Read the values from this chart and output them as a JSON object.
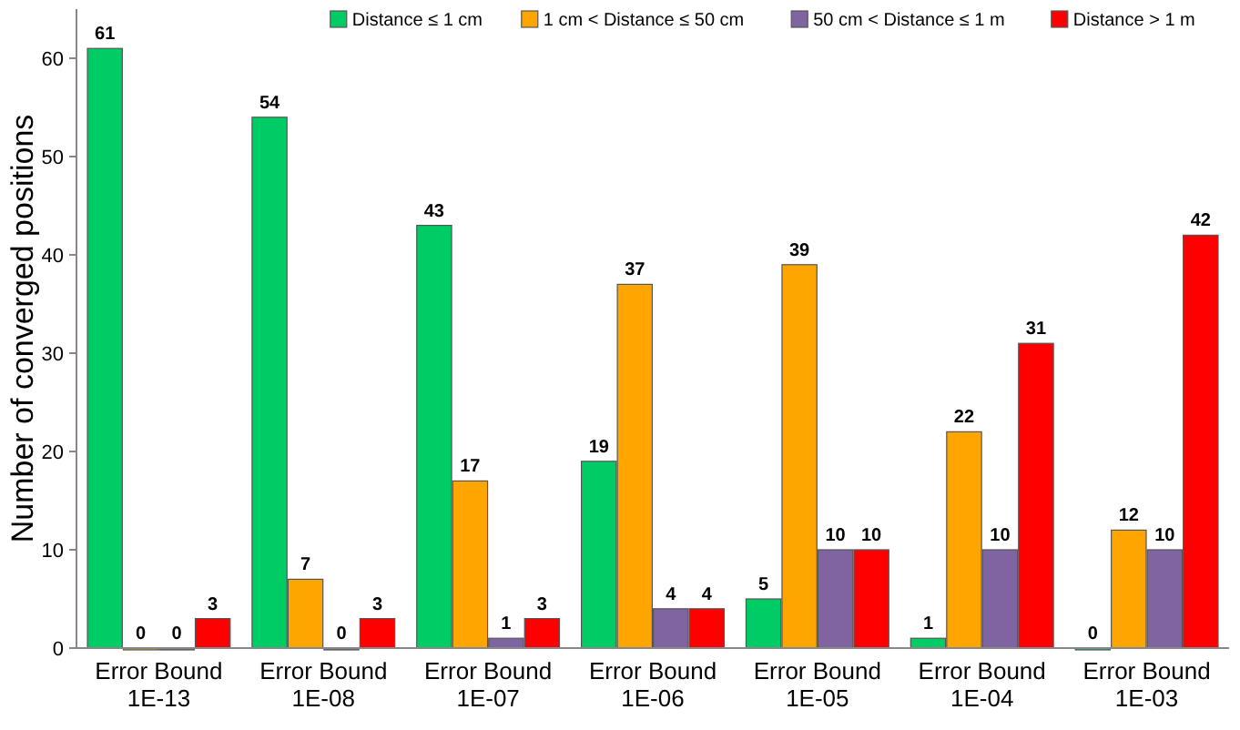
{
  "chart_data": {
    "type": "bar",
    "ylabel": "Number of converged positions",
    "categories": [
      "Error Bound 1E-13",
      "Error Bound 1E-08",
      "Error Bound 1E-07",
      "Error Bound 1E-06",
      "Error Bound 1E-05",
      "Error Bound 1E-04",
      "Error Bound 1E-03"
    ],
    "series": [
      {
        "name": "Distance ≤ 1 cm",
        "color": "#00cc66",
        "values": [
          61,
          54,
          43,
          19,
          5,
          1,
          0
        ]
      },
      {
        "name": "1 cm < Distance ≤ 50 cm",
        "color": "#ffa500",
        "values": [
          0,
          7,
          17,
          37,
          39,
          22,
          12
        ]
      },
      {
        "name": "50 cm < Distance ≤ 1 m",
        "color": "#8064a2",
        "values": [
          0,
          0,
          1,
          4,
          10,
          10,
          10
        ]
      },
      {
        "name": "Distance > 1 m",
        "color": "#ff0000",
        "values": [
          3,
          3,
          3,
          4,
          10,
          31,
          42
        ]
      }
    ],
    "ylim": [
      0,
      65
    ],
    "yticks": [
      0,
      10,
      20,
      30,
      40,
      50,
      60
    ],
    "grid": false,
    "legend": "top",
    "data_labels": true
  }
}
